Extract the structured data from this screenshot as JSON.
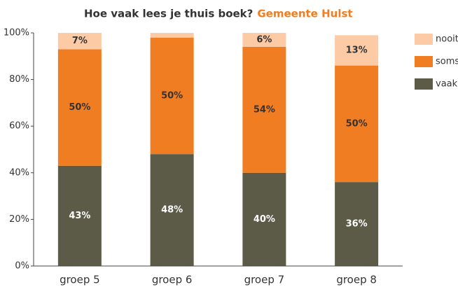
{
  "chart_data": {
    "type": "stacked_bar",
    "title": "Hoe vaak lees je thuis boek?",
    "subtitle": "Gemeente Hulst",
    "categories": [
      "groep 5",
      "groep 6",
      "groep 7",
      "groep 8"
    ],
    "series": [
      {
        "name": "vaak",
        "color": "#5b5b47",
        "values": [
          43,
          48,
          40,
          36
        ],
        "value_labels": [
          "43%",
          "48%",
          "40%",
          "36%"
        ]
      },
      {
        "name": "soms",
        "color": "#f07d22",
        "values": [
          50,
          50,
          54,
          50
        ],
        "value_labels": [
          "50%",
          "50%",
          "54%",
          "50%"
        ]
      },
      {
        "name": "nooit",
        "color": "#fdcaa6",
        "values": [
          7,
          2,
          6,
          13
        ],
        "value_labels": [
          "7%",
          null,
          "6%",
          "13%"
        ]
      }
    ],
    "ylim": [
      0,
      100
    ],
    "yticks": [
      {
        "value": 0,
        "label": "0%"
      },
      {
        "value": 20,
        "label": "20%"
      },
      {
        "value": 40,
        "label": "40%"
      },
      {
        "value": 60,
        "label": "60%"
      },
      {
        "value": 80,
        "label": "80%"
      },
      {
        "value": 100,
        "label": "100%"
      }
    ],
    "legend": "right"
  }
}
